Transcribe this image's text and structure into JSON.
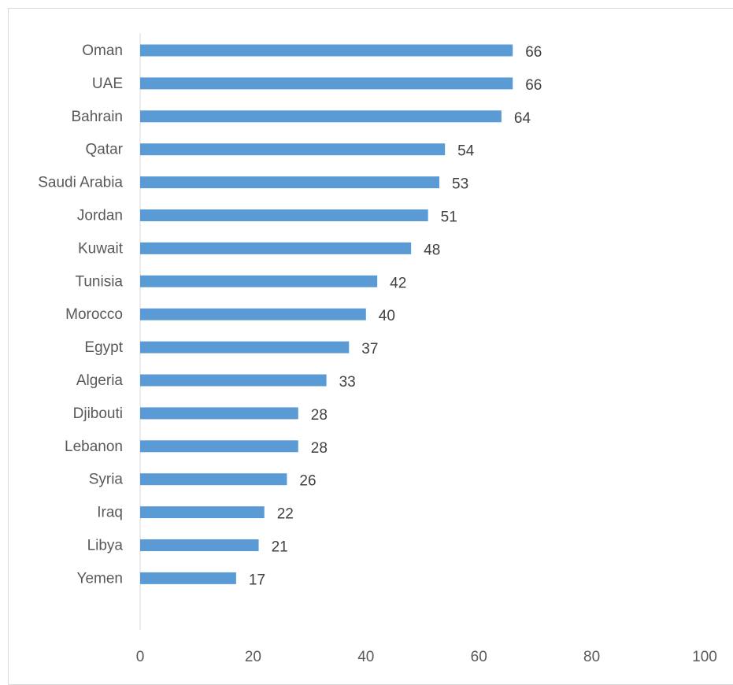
{
  "chart_data": {
    "type": "bar",
    "orientation": "horizontal",
    "categories": [
      "Oman",
      "UAE",
      "Bahrain",
      "Qatar",
      "Saudi Arabia",
      "Jordan",
      "Kuwait",
      "Tunisia",
      "Morocco",
      "Egypt",
      "Algeria",
      "Djibouti",
      "Lebanon",
      "Syria",
      "Iraq",
      "Libya",
      "Yemen"
    ],
    "values": [
      66,
      66,
      64,
      54,
      53,
      51,
      48,
      42,
      40,
      37,
      33,
      28,
      28,
      26,
      22,
      21,
      17
    ],
    "xlim": [
      0,
      100
    ],
    "xticks": [
      0,
      20,
      40,
      60,
      80,
      100
    ],
    "bar_color": "#5b9bd5",
    "gridlines": false,
    "data_labels": true,
    "legend": "none"
  }
}
